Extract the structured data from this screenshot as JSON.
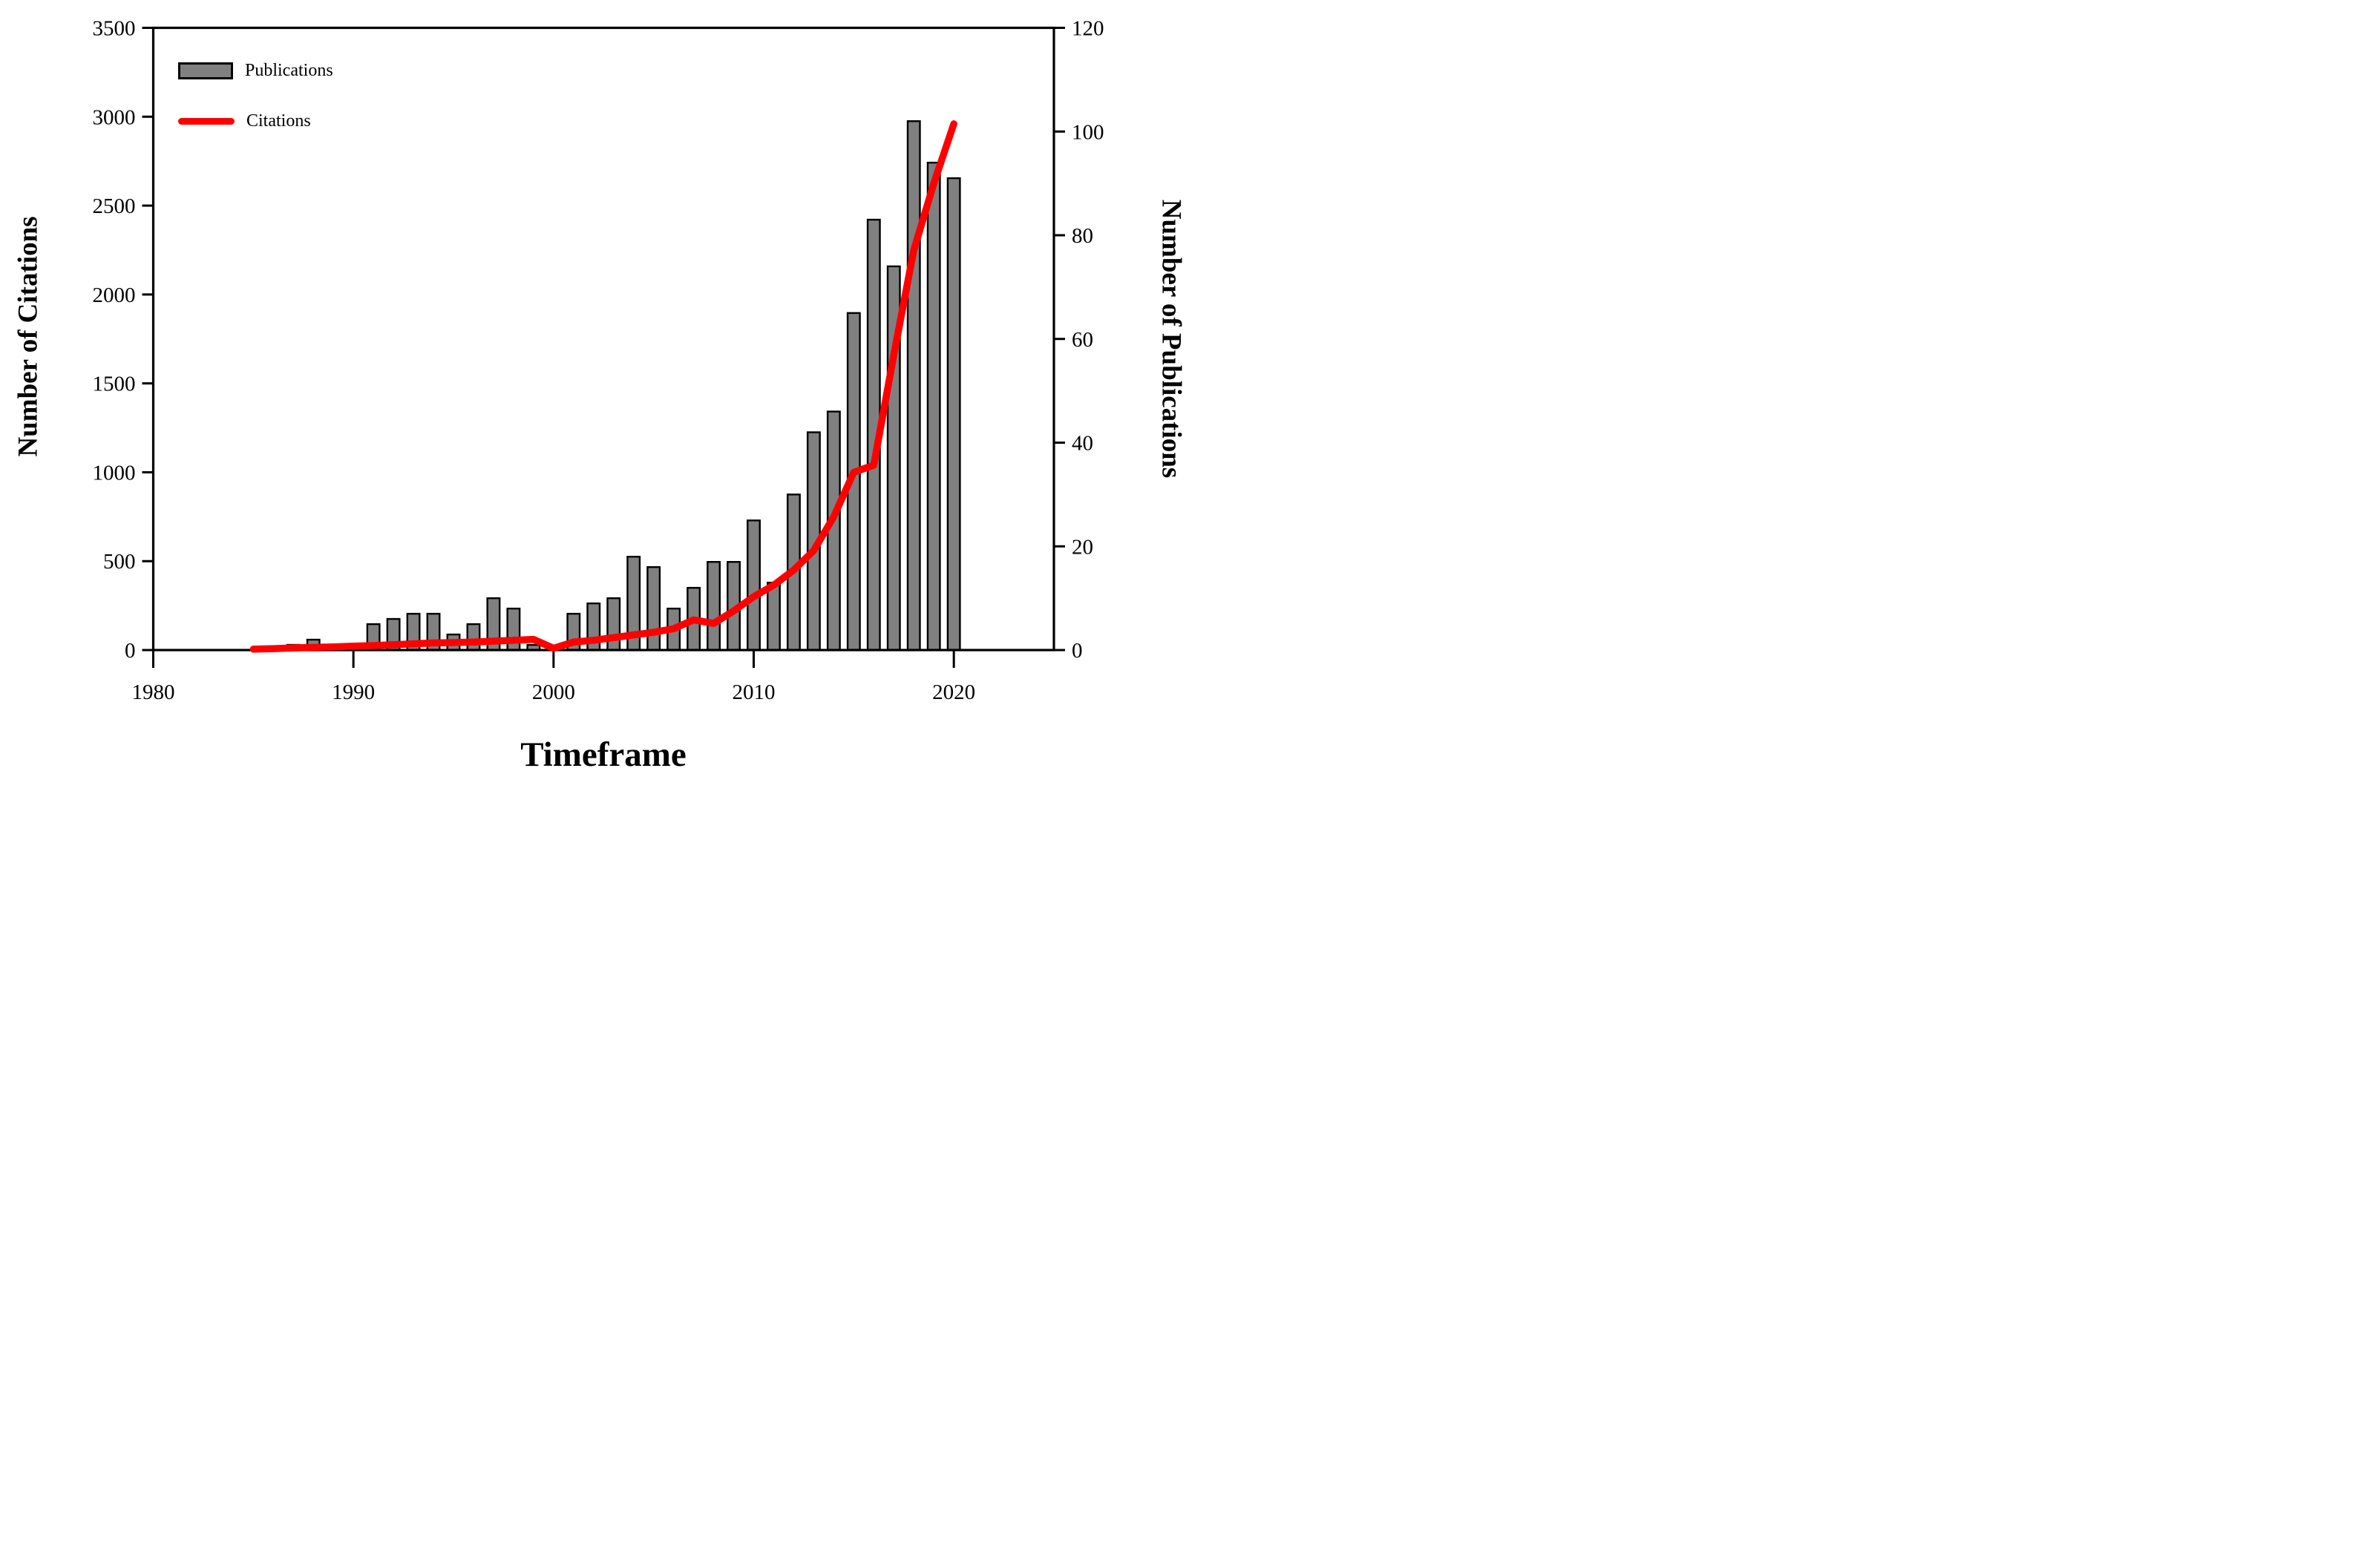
{
  "figure_title": "",
  "legend": {
    "publications_label": "Publications",
    "citations_label": "Citations"
  },
  "chart_data": {
    "type": "bar+line",
    "xlabel": "Timeframe",
    "ylabel_left": "Number of Citations",
    "ylabel_right": "Number of Publications",
    "xlim": [
      1980,
      2025
    ],
    "ylim_left": [
      0,
      3500
    ],
    "ylim_right": [
      0,
      120
    ],
    "x_ticks": [
      1980,
      1990,
      2000,
      2010,
      2020
    ],
    "yticks_left": [
      0,
      500,
      1000,
      1500,
      2000,
      2500,
      3000,
      3500
    ],
    "yticks_right": [
      0,
      20,
      40,
      60,
      80,
      100,
      120
    ],
    "grid": false,
    "legend_position": "top-left",
    "colors": {
      "bar_fill": "#808080",
      "bar_stroke": "#000000",
      "line": "#ff0000",
      "axis": "#000000"
    },
    "series": [
      {
        "name": "Publications",
        "type": "bar",
        "axis": "right",
        "x": [
          1987,
          1988,
          1990,
          1991,
          1992,
          1993,
          1994,
          1995,
          1996,
          1997,
          1998,
          1999,
          2001,
          2002,
          2003,
          2004,
          2005,
          2006,
          2007,
          2008,
          2009,
          2010,
          2011,
          2012,
          2013,
          2014,
          2015,
          2016,
          2017,
          2018,
          2019,
          2020
        ],
        "values": [
          1,
          2,
          1,
          5,
          6,
          7,
          7,
          3,
          5,
          10,
          8,
          1,
          7,
          9,
          10,
          18,
          16,
          8,
          12,
          17,
          17,
          25,
          13,
          30,
          42,
          46,
          65,
          83,
          74,
          102,
          94,
          91
        ]
      },
      {
        "name": "Citations",
        "type": "line",
        "axis": "left",
        "x": [
          1985,
          1986,
          1987,
          1988,
          1989,
          1990,
          1991,
          1992,
          1993,
          1994,
          1995,
          1996,
          1997,
          1998,
          1999,
          2000,
          2001,
          2002,
          2003,
          2004,
          2005,
          2006,
          2007,
          2008,
          2009,
          2010,
          2011,
          2012,
          2013,
          2014,
          2015,
          2016,
          2017,
          2018,
          2019,
          2020
        ],
        "values": [
          5,
          8,
          12,
          15,
          18,
          22,
          25,
          30,
          35,
          40,
          42,
          45,
          50,
          55,
          60,
          10,
          45,
          55,
          70,
          85,
          100,
          120,
          170,
          150,
          220,
          300,
          365,
          450,
          560,
          750,
          1000,
          1040,
          1660,
          2250,
          2625,
          2960
        ]
      }
    ]
  }
}
